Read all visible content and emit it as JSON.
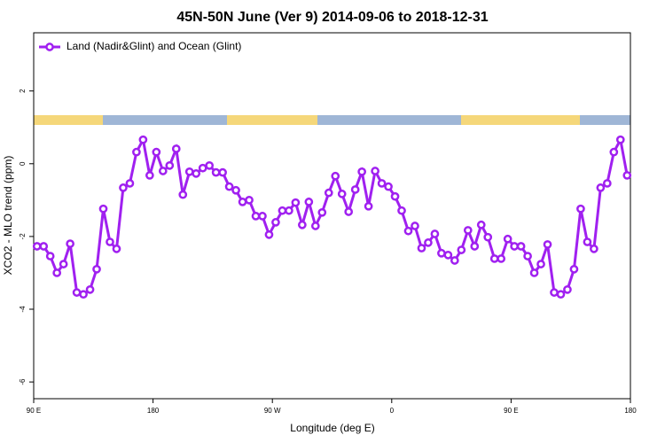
{
  "chart_data": {
    "type": "line",
    "title": "45N-50N June (Ver 9)   2014-09-06 to 2018-12-31",
    "x_label": "Longitude (deg E)",
    "y_label": "XCO2 - MLO trend (ppm)",
    "legend": "top-left",
    "xlim": [
      90,
      540
    ],
    "ylim": [
      -6.46,
      3.6
    ],
    "xticks": [
      {
        "value": 90,
        "label": "90 E"
      },
      {
        "value": 180,
        "label": "180"
      },
      {
        "value": 270,
        "label": "90 W"
      },
      {
        "value": 360,
        "label": "0"
      },
      {
        "value": 450,
        "label": "90 E"
      },
      {
        "value": 540,
        "label": "180"
      }
    ],
    "yticks": [
      2,
      0,
      -2,
      -4,
      -6
    ],
    "x": [
      92.5,
      97.5,
      102.5,
      107.5,
      112.5,
      117.5,
      122.5,
      127.5,
      132.5,
      137.5,
      142.5,
      147.5,
      152.5,
      157.5,
      162.5,
      167.5,
      172.5,
      177.5,
      182.5,
      187.5,
      192.5,
      197.5,
      202.5,
      207.5,
      212.5,
      217.5,
      222.5,
      227.5,
      232.5,
      237.5,
      242.5,
      247.5,
      252.5,
      257.5,
      262.5,
      267.5,
      272.5,
      277.5,
      282.5,
      287.5,
      292.5,
      297.5,
      302.5,
      307.5,
      312.5,
      317.5,
      322.5,
      327.5,
      332.5,
      337.5,
      342.5,
      347.5,
      352.5,
      357.5,
      362.5,
      367.5,
      372.5,
      377.5,
      382.5,
      387.5,
      392.5,
      397.5,
      402.5,
      407.5,
      412.5,
      417.5,
      422.5,
      427.5,
      432.5,
      437.5,
      442.5,
      447.5,
      452.5,
      457.5,
      462.5,
      467.5,
      472.5,
      477.5,
      482.5,
      487.5,
      492.5,
      497.5,
      502.5,
      507.5,
      512.5,
      517.5,
      522.5,
      527.5,
      532.5,
      537.5
    ],
    "series": [
      {
        "name": "Land (Nadir&Glint) and Ocean (Glint)",
        "color": "#a020f0",
        "values": [
          -2.27,
          -2.27,
          -2.54,
          -3.0,
          -2.76,
          -2.2,
          -3.54,
          -3.59,
          -3.46,
          -2.9,
          -1.24,
          -2.15,
          -2.34,
          -0.66,
          -0.54,
          0.32,
          0.66,
          -0.32,
          0.32,
          -0.2,
          -0.05,
          0.41,
          -0.85,
          -0.22,
          -0.27,
          -0.12,
          -0.05,
          -0.24,
          -0.24,
          -0.63,
          -0.73,
          -1.05,
          -1.0,
          -1.44,
          -1.44,
          -1.95,
          -1.61,
          -1.29,
          -1.29,
          -1.07,
          -1.68,
          -1.05,
          -1.71,
          -1.34,
          -0.8,
          -0.34,
          -0.83,
          -1.32,
          -0.71,
          -0.22,
          -1.17,
          -0.2,
          -0.54,
          -0.63,
          -0.9,
          -1.29,
          -1.85,
          -1.71,
          -2.32,
          -2.17,
          -1.93,
          -2.46,
          -2.51,
          -2.66,
          -2.37,
          -1.83,
          -2.27,
          -1.68,
          -2.02,
          -2.61,
          -2.61,
          -2.07,
          -2.27,
          -2.27,
          -2.54,
          -3.0,
          -2.76,
          -2.22,
          -3.54,
          -3.59,
          -3.46,
          -2.9,
          -1.24,
          -2.15,
          -2.34,
          -0.66,
          -0.54,
          0.32,
          0.66,
          -0.32
        ]
      }
    ]
  }
}
